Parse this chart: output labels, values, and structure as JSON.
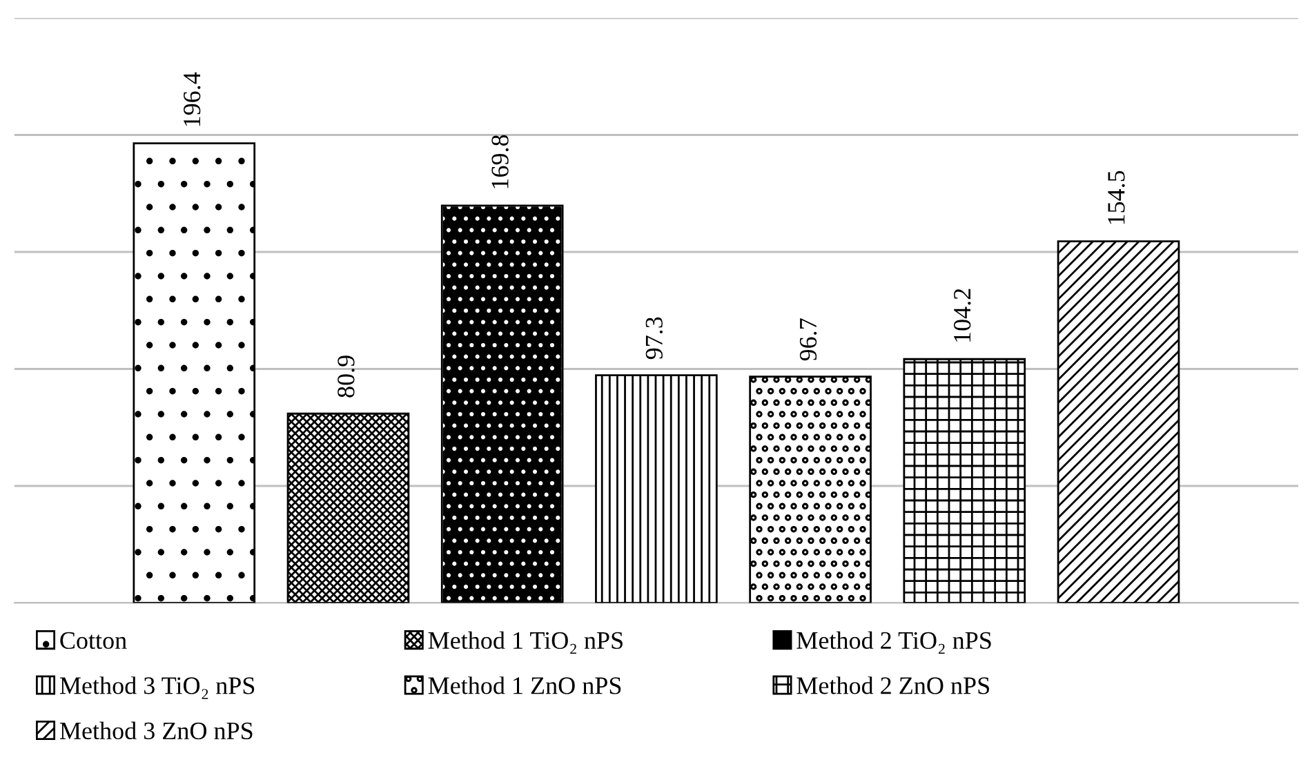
{
  "chart_data": {
    "type": "bar",
    "categories": [
      null
    ],
    "series": [
      {
        "name": "Cotton",
        "color": "#000000",
        "values": [
          196.4
        ]
      },
      {
        "name": "Method 1 TiO₂ nPS",
        "color": "#000000",
        "values": [
          80.9
        ]
      },
      {
        "name": "Method 2 TiO₂ nPS",
        "color": "#000000",
        "values": [
          169.8
        ]
      },
      {
        "name": "Method 3 TiO₂ nPS",
        "color": "#000000",
        "values": [
          97.3
        ]
      },
      {
        "name": "Method 1 ZnO nPS",
        "color": "#000000",
        "values": [
          96.7
        ]
      },
      {
        "name": "Method 2 ZnO nPS",
        "color": "#000000",
        "values": [
          104.2
        ]
      },
      {
        "name": "Method 3 ZnO nPS",
        "color": "#000000",
        "values": [
          154.5
        ]
      }
    ],
    "ylim": [
      0,
      250
    ],
    "yticks": [
      {
        "value": 0,
        "label": null
      },
      {
        "value": 50,
        "label": null
      },
      {
        "value": 100,
        "label": null
      },
      {
        "value": 150,
        "label": null
      },
      {
        "value": 200,
        "label": null
      },
      {
        "value": 250,
        "label": null
      }
    ],
    "grid": "y",
    "legend": "bottom",
    "data_labels": true
  }
}
